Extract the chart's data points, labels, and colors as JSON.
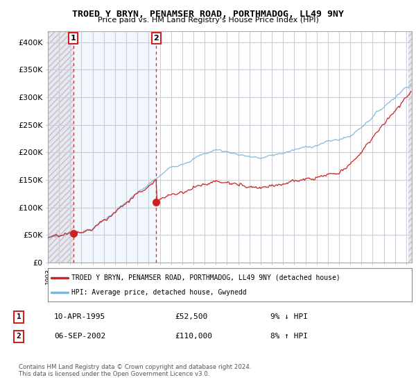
{
  "title": "TROED Y BRYN, PENAMSER ROAD, PORTHMADOG, LL49 9NY",
  "subtitle": "Price paid vs. HM Land Registry's House Price Index (HPI)",
  "legend_line1": "TROED Y BRYN, PENAMSER ROAD, PORTHMADOG, LL49 9NY (detached house)",
  "legend_line2": "HPI: Average price, detached house, Gwynedd",
  "annotation1_date": "10-APR-1995",
  "annotation1_price": "£52,500",
  "annotation1_hpi": "9% ↓ HPI",
  "annotation2_date": "06-SEP-2002",
  "annotation2_price": "£110,000",
  "annotation2_hpi": "8% ↑ HPI",
  "footer": "Contains HM Land Registry data © Crown copyright and database right 2024.\nThis data is licensed under the Open Government Licence v3.0.",
  "hpi_color": "#7ab8d9",
  "price_color": "#cc2222",
  "annotation_box_color": "#cc2222",
  "ylim": [
    0,
    420000
  ],
  "yticks": [
    0,
    50000,
    100000,
    150000,
    200000,
    250000,
    300000,
    350000,
    400000
  ],
  "ytick_labels": [
    "£0",
    "£50K",
    "£100K",
    "£150K",
    "£200K",
    "£250K",
    "£300K",
    "£350K",
    "£400K"
  ],
  "sale1_year": 1995.28,
  "sale1_price": 52500,
  "sale2_year": 2002.68,
  "sale2_price": 110000,
  "xmin": 1993,
  "xmax": 2025.5
}
